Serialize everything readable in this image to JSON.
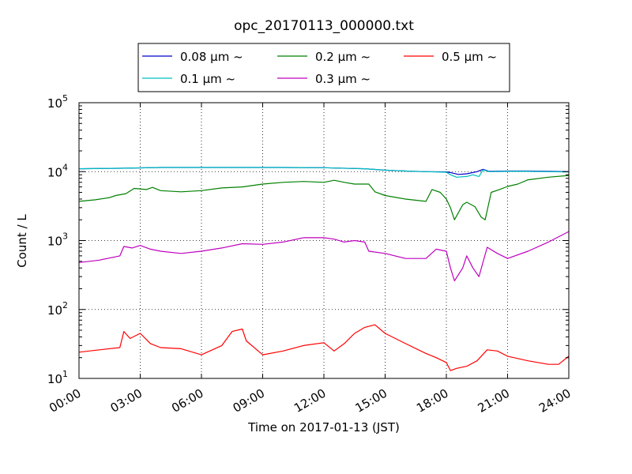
{
  "chart_data": {
    "type": "line",
    "title": "opc_20170113_000000.txt",
    "xlabel": "Time on 2017-01-13 (JST)",
    "ylabel": "Count / L",
    "x_unit": "hour",
    "xlim": [
      0,
      24
    ],
    "ylim": [
      10,
      100000
    ],
    "yscale": "log",
    "grid": true,
    "legend_position": "top-center",
    "x_ticks": [
      {
        "value": 0,
        "label": "00:00"
      },
      {
        "value": 3,
        "label": "03:00"
      },
      {
        "value": 6,
        "label": "06:00"
      },
      {
        "value": 9,
        "label": "09:00"
      },
      {
        "value": 12,
        "label": "12:00"
      },
      {
        "value": 15,
        "label": "15:00"
      },
      {
        "value": 18,
        "label": "18:00"
      },
      {
        "value": 21,
        "label": "21:00"
      },
      {
        "value": 24,
        "label": "24:00"
      }
    ],
    "y_ticks": [
      {
        "value": 10,
        "base": "10",
        "exp": "1"
      },
      {
        "value": 100,
        "base": "10",
        "exp": "2"
      },
      {
        "value": 1000,
        "base": "10",
        "exp": "3"
      },
      {
        "value": 10000,
        "base": "10",
        "exp": "4"
      },
      {
        "value": 100000,
        "base": "10",
        "exp": "5"
      }
    ],
    "series": [
      {
        "name": "0.08 μm ~",
        "color": "#0000cc",
        "points": [
          [
            0,
            11000
          ],
          [
            2,
            11200
          ],
          [
            4,
            11500
          ],
          [
            6,
            11500
          ],
          [
            8,
            11500
          ],
          [
            10,
            11500
          ],
          [
            12,
            11400
          ],
          [
            14,
            11000
          ],
          [
            15,
            10500
          ],
          [
            16,
            10200
          ],
          [
            17,
            10000
          ],
          [
            18,
            9900
          ],
          [
            18.2,
            9700
          ],
          [
            18.6,
            9100
          ],
          [
            19,
            9300
          ],
          [
            19.5,
            10000
          ],
          [
            19.8,
            10800
          ],
          [
            20.1,
            10100
          ],
          [
            21,
            10200
          ],
          [
            22,
            10200
          ],
          [
            23,
            10100
          ],
          [
            24,
            10000
          ]
        ]
      },
      {
        "name": "0.1 μm ~",
        "color": "#00bfbf",
        "points": [
          [
            0,
            11000
          ],
          [
            2,
            11200
          ],
          [
            4,
            11500
          ],
          [
            6,
            11500
          ],
          [
            8,
            11500
          ],
          [
            10,
            11500
          ],
          [
            12,
            11400
          ],
          [
            14,
            11000
          ],
          [
            15,
            10500
          ],
          [
            16,
            10200
          ],
          [
            17,
            10000
          ],
          [
            18,
            9800
          ],
          [
            18.2,
            9000
          ],
          [
            18.5,
            8300
          ],
          [
            19,
            8500
          ],
          [
            19.3,
            9000
          ],
          [
            19.6,
            8500
          ],
          [
            19.8,
            10600
          ],
          [
            20.1,
            10000
          ],
          [
            21,
            10100
          ],
          [
            22,
            10100
          ],
          [
            23,
            10000
          ],
          [
            24,
            9900
          ]
        ]
      },
      {
        "name": "0.2 μm ~",
        "color": "#008000",
        "points": [
          [
            0,
            3700
          ],
          [
            0.8,
            3900
          ],
          [
            1.5,
            4200
          ],
          [
            1.8,
            4500
          ],
          [
            2.3,
            4800
          ],
          [
            2.7,
            5700
          ],
          [
            3.3,
            5500
          ],
          [
            3.6,
            5900
          ],
          [
            4,
            5300
          ],
          [
            5,
            5100
          ],
          [
            6,
            5300
          ],
          [
            7,
            5800
          ],
          [
            8,
            6000
          ],
          [
            9,
            6600
          ],
          [
            10,
            7000
          ],
          [
            11,
            7200
          ],
          [
            12,
            7000
          ],
          [
            12.5,
            7500
          ],
          [
            13,
            7000
          ],
          [
            13.5,
            6600
          ],
          [
            14.2,
            6600
          ],
          [
            14.5,
            5100
          ],
          [
            15,
            4500
          ],
          [
            16,
            4000
          ],
          [
            17,
            3700
          ],
          [
            17.3,
            5500
          ],
          [
            17.7,
            5000
          ],
          [
            18,
            4000
          ],
          [
            18.2,
            3000
          ],
          [
            18.4,
            2000
          ],
          [
            18.8,
            3300
          ],
          [
            19,
            3600
          ],
          [
            19.4,
            3100
          ],
          [
            19.7,
            2200
          ],
          [
            19.9,
            2000
          ],
          [
            20.2,
            5000
          ],
          [
            20.6,
            5500
          ],
          [
            21,
            6100
          ],
          [
            21.5,
            6600
          ],
          [
            22,
            7600
          ],
          [
            23,
            8300
          ],
          [
            24,
            8800
          ]
        ]
      },
      {
        "name": "0.3 μm ~",
        "color": "#bf00bf",
        "points": [
          [
            0,
            480
          ],
          [
            1,
            520
          ],
          [
            2,
            600
          ],
          [
            2.2,
            820
          ],
          [
            2.6,
            780
          ],
          [
            3,
            850
          ],
          [
            3.5,
            750
          ],
          [
            4,
            700
          ],
          [
            5,
            650
          ],
          [
            6,
            700
          ],
          [
            7,
            780
          ],
          [
            8,
            900
          ],
          [
            9,
            880
          ],
          [
            10,
            950
          ],
          [
            11,
            1100
          ],
          [
            12,
            1100
          ],
          [
            12.5,
            1050
          ],
          [
            13,
            950
          ],
          [
            13.5,
            1000
          ],
          [
            14,
            950
          ],
          [
            14.2,
            700
          ],
          [
            15,
            650
          ],
          [
            16,
            550
          ],
          [
            17,
            550
          ],
          [
            17.5,
            750
          ],
          [
            18,
            700
          ],
          [
            18.2,
            400
          ],
          [
            18.4,
            260
          ],
          [
            18.8,
            400
          ],
          [
            19,
            600
          ],
          [
            19.3,
            400
          ],
          [
            19.6,
            300
          ],
          [
            20,
            800
          ],
          [
            20.5,
            650
          ],
          [
            21,
            550
          ],
          [
            22,
            700
          ],
          [
            23,
            950
          ],
          [
            24,
            1350
          ]
        ]
      },
      {
        "name": "0.5 μm ~",
        "color": "#ff0000",
        "points": [
          [
            0,
            24
          ],
          [
            1,
            26
          ],
          [
            2,
            28
          ],
          [
            2.2,
            48
          ],
          [
            2.5,
            38
          ],
          [
            3,
            45
          ],
          [
            3.5,
            32
          ],
          [
            4,
            28
          ],
          [
            5,
            27
          ],
          [
            6,
            22
          ],
          [
            7,
            30
          ],
          [
            7.5,
            48
          ],
          [
            8,
            52
          ],
          [
            8.2,
            35
          ],
          [
            9,
            22
          ],
          [
            10,
            25
          ],
          [
            11,
            30
          ],
          [
            12,
            33
          ],
          [
            12.5,
            25
          ],
          [
            13,
            32
          ],
          [
            13.5,
            45
          ],
          [
            14,
            55
          ],
          [
            14.5,
            60
          ],
          [
            15,
            45
          ],
          [
            16,
            32
          ],
          [
            17,
            23
          ],
          [
            17.5,
            20
          ],
          [
            18,
            17
          ],
          [
            18.2,
            13
          ],
          [
            18.5,
            14
          ],
          [
            19,
            15
          ],
          [
            19.5,
            18
          ],
          [
            20,
            26
          ],
          [
            20.5,
            25
          ],
          [
            21,
            21
          ],
          [
            22,
            18
          ],
          [
            23,
            16
          ],
          [
            23.5,
            16
          ],
          [
            24,
            21
          ]
        ]
      }
    ]
  }
}
